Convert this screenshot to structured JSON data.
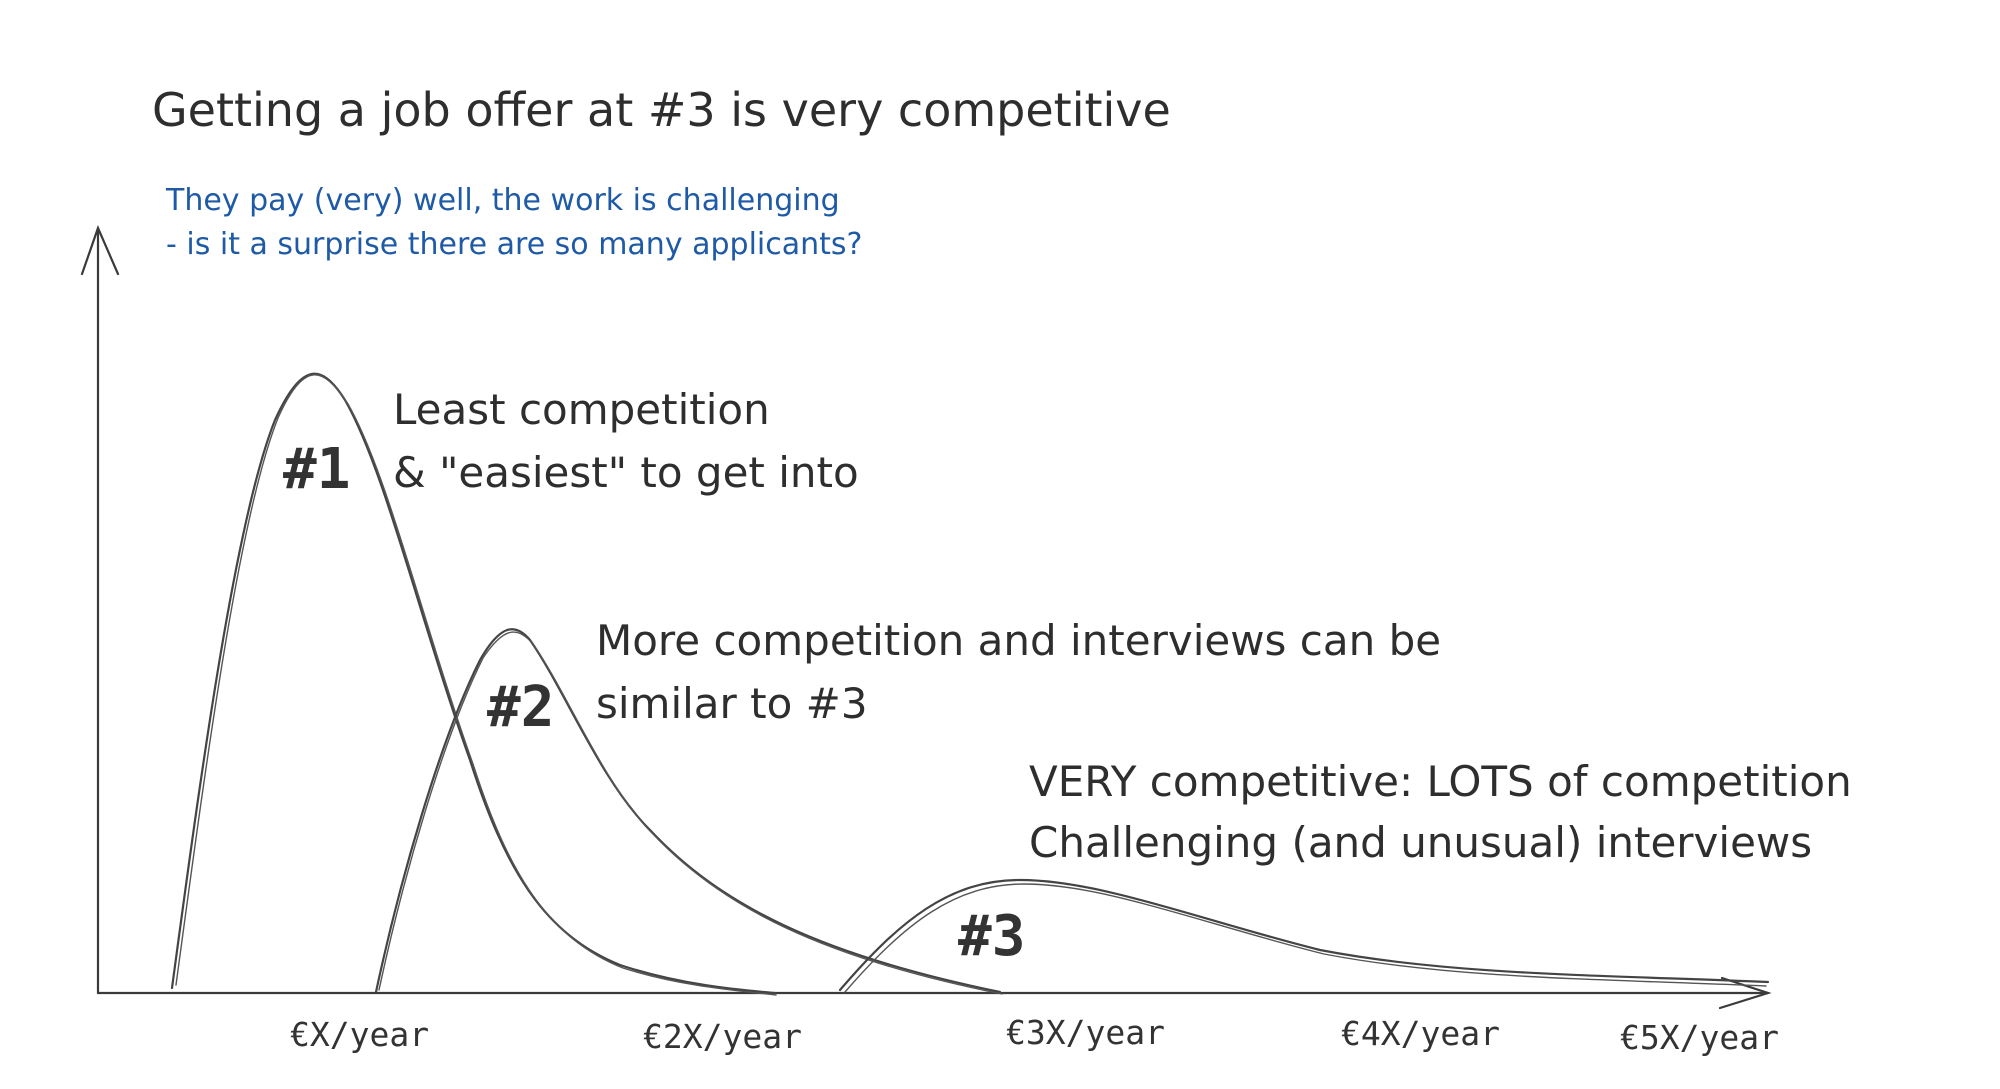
{
  "title": "Getting a job offer at #3 is very competitive",
  "subtitle": {
    "line1": "They pay (very) well, the work is challenging",
    "line2": "-   is it a surprise there are so many applicants?"
  },
  "annotations": {
    "tier1": {
      "line1": "Least competition",
      "line2": "& \"easiest\" to get into"
    },
    "tier2": {
      "line1": "More competition and interviews can be",
      "line2": "similar to #3"
    },
    "tier3": {
      "line1": "VERY competitive: LOTS of competition",
      "line2": "Challenging (and unusual) interviews"
    }
  },
  "peaks": {
    "p1": "#1",
    "p2": "#2",
    "p3": "#3"
  },
  "x_axis": {
    "ticks": [
      "€X/year",
      "€2X/year",
      "€3X/year",
      "€4X/year",
      "€5X/year"
    ]
  },
  "colors": {
    "ink": "#2e2e2e",
    "blue_note": "#1f5aa6",
    "background": "#ffffff"
  }
}
